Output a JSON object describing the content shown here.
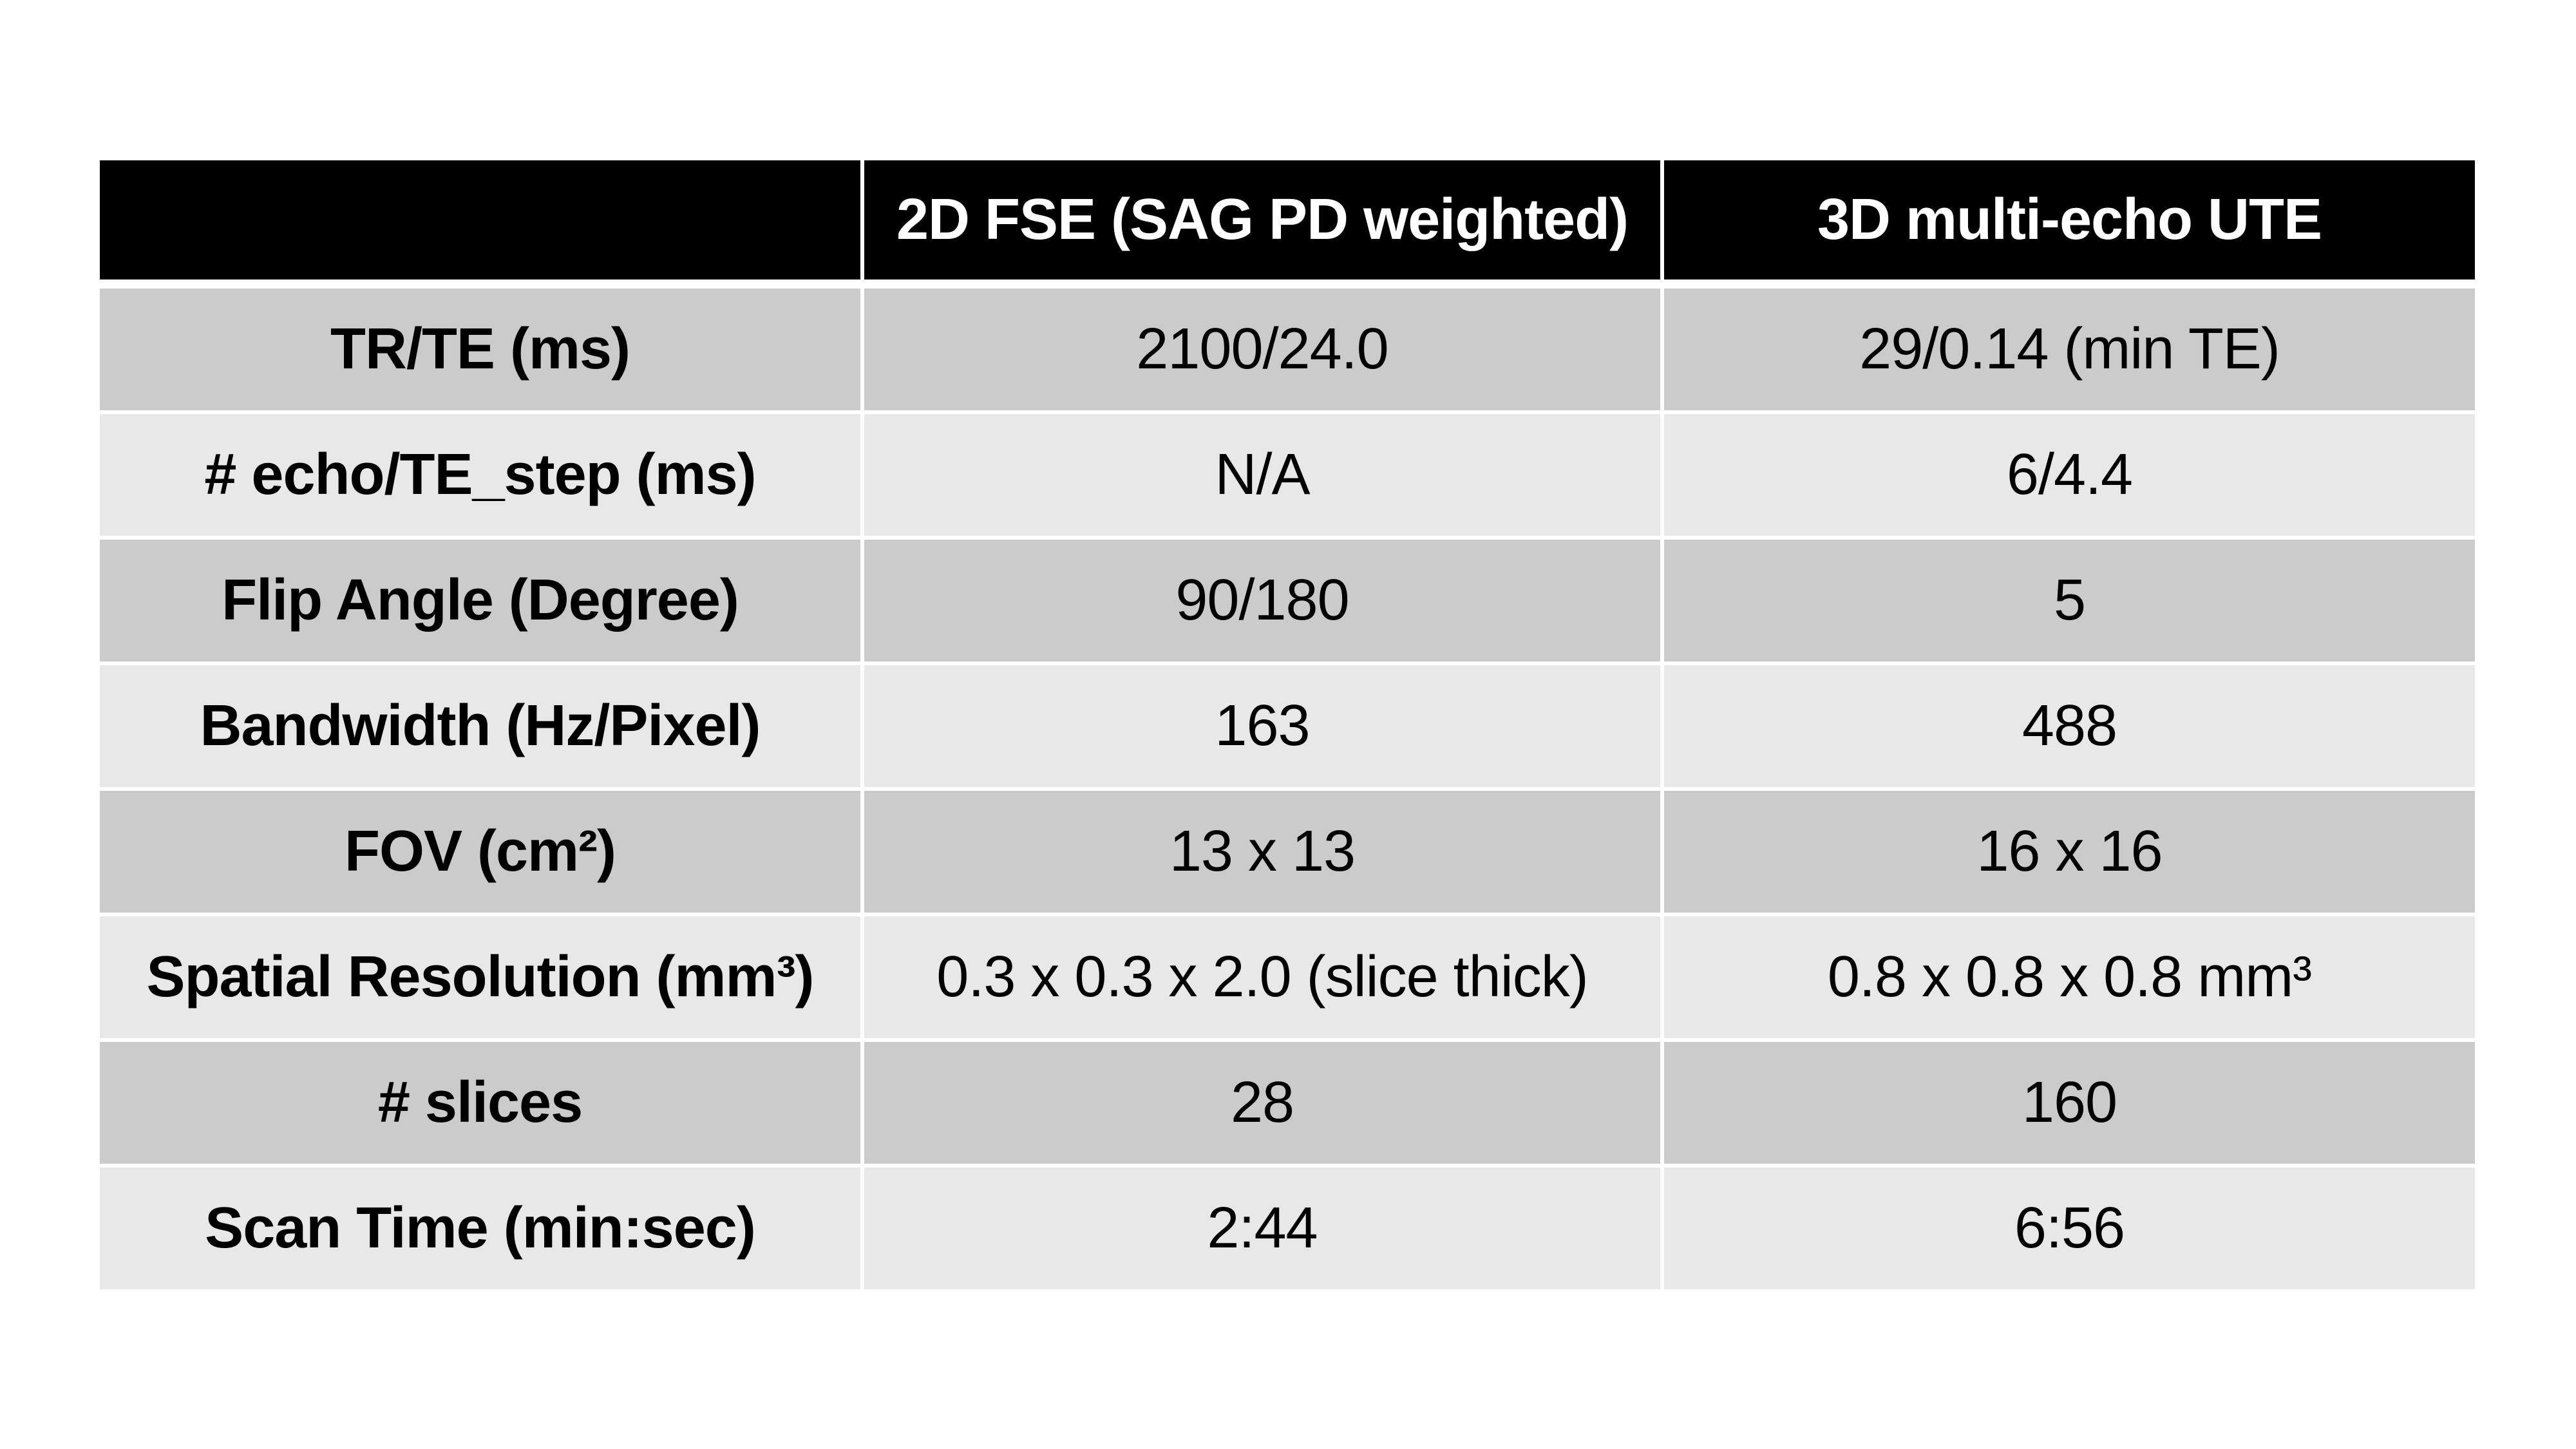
{
  "chart_data": {
    "type": "table",
    "title": "",
    "columns": [
      "",
      "2D FSE (SAG PD weighted)",
      "3D multi-echo UTE"
    ],
    "rows": [
      [
        "TR/TE (ms)",
        "2100/24.0",
        "29/0.14 (min TE)"
      ],
      [
        "# echo/TE_step (ms)",
        "N/A",
        "6/4.4"
      ],
      [
        "Flip Angle (Degree)",
        "90/180",
        "5"
      ],
      [
        "Bandwidth (Hz/Pixel)",
        "163",
        "488"
      ],
      [
        "FOV (cm²)",
        "13 x 13",
        "16 x 16"
      ],
      [
        "Spatial Resolution (mm³)",
        "0.3 x 0.3 x 2.0 (slice thick)",
        "0.8 x 0.8 x 0.8 mm³"
      ],
      [
        "# slices",
        "28",
        "160"
      ],
      [
        "Scan Time (min:sec)",
        "2:44",
        "6:56"
      ]
    ],
    "layout": {
      "legend": "none",
      "grid": "white-gaps-between-cells",
      "header_bg": "#000000",
      "header_text_color": "#ffffff",
      "row_color_odd": "#cbcbcb",
      "row_color_even": "#e8e8e8",
      "gap_color": "#ffffff",
      "body_text_color": "#000000",
      "slide_background": "#ffffff"
    }
  }
}
